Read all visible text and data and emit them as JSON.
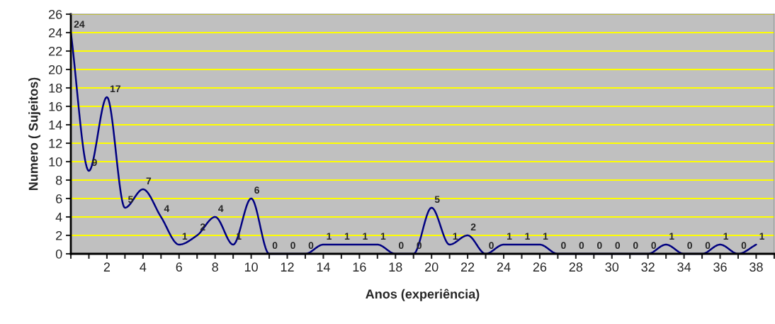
{
  "chart_data": {
    "type": "line",
    "xlabel": "Anos (experiência)",
    "ylabel": "Numero ( Sujeitos)",
    "x": [
      0,
      1,
      2,
      3,
      4,
      5,
      6,
      7,
      8,
      9,
      10,
      11,
      12,
      13,
      14,
      15,
      16,
      17,
      18,
      19,
      20,
      21,
      22,
      23,
      24,
      25,
      26,
      27,
      28,
      29,
      30,
      31,
      32,
      33,
      34,
      35,
      36,
      37,
      38
    ],
    "series": [
      {
        "color": "#000080",
        "values": [
          24,
          9,
          17,
          5,
          7,
          4,
          1,
          2,
          4,
          1,
          6,
          0,
          0,
          0,
          1,
          1,
          1,
          1,
          0,
          0,
          5,
          1,
          2,
          0,
          1,
          1,
          1,
          0,
          0,
          0,
          0,
          0,
          0,
          1,
          0,
          0,
          1,
          0,
          1
        ]
      }
    ],
    "xlim": [
      0,
      39
    ],
    "xticks": [
      {
        "value": 0,
        "label": null
      },
      {
        "value": 1,
        "label": null
      },
      2,
      {
        "value": 3,
        "label": null
      },
      4,
      {
        "value": 5,
        "label": null
      },
      6,
      {
        "value": 7,
        "label": null
      },
      8,
      {
        "value": 9,
        "label": null
      },
      10,
      {
        "value": 11,
        "label": null
      },
      12,
      {
        "value": 13,
        "label": null
      },
      14,
      {
        "value": 15,
        "label": null
      },
      16,
      {
        "value": 17,
        "label": null
      },
      18,
      {
        "value": 19,
        "label": null
      },
      20,
      {
        "value": 21,
        "label": null
      },
      22,
      {
        "value": 23,
        "label": null
      },
      24,
      {
        "value": 25,
        "label": null
      },
      26,
      {
        "value": 27,
        "label": null
      },
      28,
      {
        "value": 29,
        "label": null
      },
      30,
      {
        "value": 31,
        "label": null
      },
      32,
      {
        "value": 33,
        "label": null
      },
      34,
      {
        "value": 35,
        "label": null
      },
      36,
      {
        "value": 37,
        "label": null
      },
      38,
      {
        "value": 39,
        "label": null
      }
    ],
    "ylim": [
      0,
      26
    ],
    "yticks": [
      0,
      2,
      4,
      6,
      8,
      10,
      12,
      14,
      16,
      18,
      20,
      22,
      24,
      26
    ],
    "grid": "y",
    "data_labels": true,
    "marker": "none",
    "line_style": "solid",
    "legend": false
  }
}
